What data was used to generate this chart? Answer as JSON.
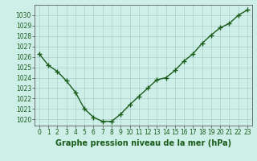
{
  "x": [
    0,
    1,
    2,
    3,
    4,
    5,
    6,
    7,
    8,
    9,
    10,
    11,
    12,
    13,
    14,
    15,
    16,
    17,
    18,
    19,
    20,
    21,
    22,
    23
  ],
  "y": [
    1026.3,
    1025.2,
    1024.6,
    1023.7,
    1022.6,
    1021.0,
    1020.2,
    1019.8,
    1019.8,
    1020.5,
    1021.4,
    1022.2,
    1023.0,
    1023.8,
    1024.0,
    1024.7,
    1025.6,
    1026.3,
    1027.3,
    1028.1,
    1028.8,
    1029.2,
    1030.0,
    1030.5
  ],
  "line_color": "#1a5c1a",
  "marker": "+",
  "marker_size": 4,
  "bg_color": "#ceeee8",
  "grid_color": "#aacfca",
  "xlabel": "Graphe pression niveau de la mer (hPa)",
  "xlabel_fontsize": 7,
  "ylim": [
    1019.4,
    1031.0
  ],
  "xlim": [
    -0.5,
    23.5
  ],
  "yticks": [
    1020,
    1021,
    1022,
    1023,
    1024,
    1025,
    1026,
    1027,
    1028,
    1029,
    1030
  ],
  "xticks": [
    0,
    1,
    2,
    3,
    4,
    5,
    6,
    7,
    8,
    9,
    10,
    11,
    12,
    13,
    14,
    15,
    16,
    17,
    18,
    19,
    20,
    21,
    22,
    23
  ],
  "tick_fontsize": 5.5,
  "line_width": 1.0,
  "spine_color": "#444444",
  "tick_color": "#1a5c1a",
  "label_color": "#1a5c1a"
}
